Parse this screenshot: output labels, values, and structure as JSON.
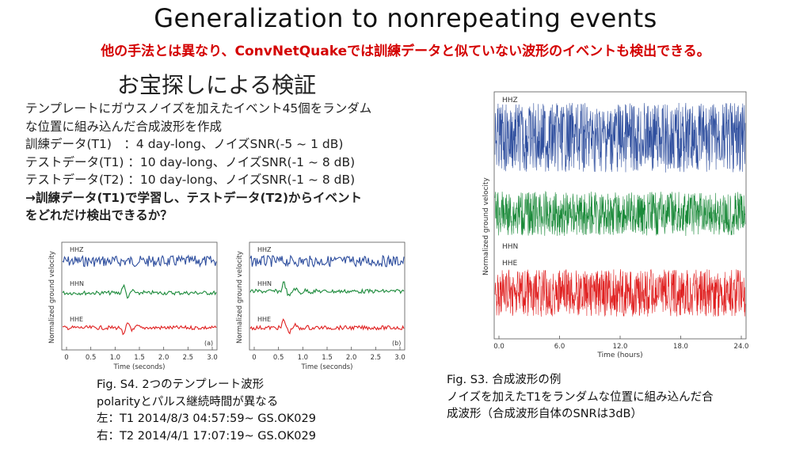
{
  "slide": {
    "title": "Generalization to nonrepeating events",
    "subtitle": "他の手法とは異なり、ConvNetQuakeでは訓練データと似ていない波形のイベントも検出できる。",
    "heading": "お宝探しによる検証",
    "body_lines": [
      "テンプレートにガウスノイズを加えたイベント45個をランダム",
      "な位置に組み込んだ合成波形を作成",
      "訓練データ(T1)　：4 day-long、ノイズSNR(-5 ~ 1 dB)",
      "テストデータ(T1) ：10 day-long、ノイズSNR(-1 ~ 8 dB)",
      "テストデータ(T2) ：10 day-long、ノイズSNR(-1 ~ 8 dB)"
    ],
    "conclusion_lines": [
      "→訓練データ(T1)で学習し、テストデータ(T2)からイベント",
      "をどれだけ検出できるか？"
    ]
  },
  "figure_s4": {
    "ylabel": "Normalized ground velocity",
    "xlabel": "Time (seconds)",
    "ticks": [
      "0",
      "0.5",
      "1.0",
      "1.5",
      "2.0",
      "2.5",
      "3.0"
    ],
    "channels": [
      "HHZ",
      "HHN",
      "HHE"
    ],
    "panel_a_label": "(a)",
    "panel_b_label": "(b)",
    "caption_lines": [
      "Fig. S4. 2つのテンプレート波形",
      "polarityとパルス継続時間が異なる",
      "左：T1 2014/8/3 04:57:59~ GS.OK029",
      "右：T2 2014/4/1 17:07:19~ GS.OK029"
    ]
  },
  "figure_s3": {
    "ylabel": "Normalized ground velocity",
    "xlabel": "Time (hours)",
    "ticks": [
      "0.0",
      "6.0",
      "12.0",
      "18.0",
      "24.0"
    ],
    "channels": [
      "HHZ",
      "HHN",
      "HHE"
    ],
    "caption_lines": [
      "Fig. S3. 合成波形の例",
      "ノイズを加えたT1をランダムな位置に組み込んだ合",
      "成波形（合成波形自体のSNRは3dB）"
    ]
  },
  "colors": {
    "title": "#111111",
    "subtitle": "#d40000",
    "hhz": "#2e4e9e",
    "hhn": "#1b8a3a",
    "hhe": "#e02020"
  }
}
